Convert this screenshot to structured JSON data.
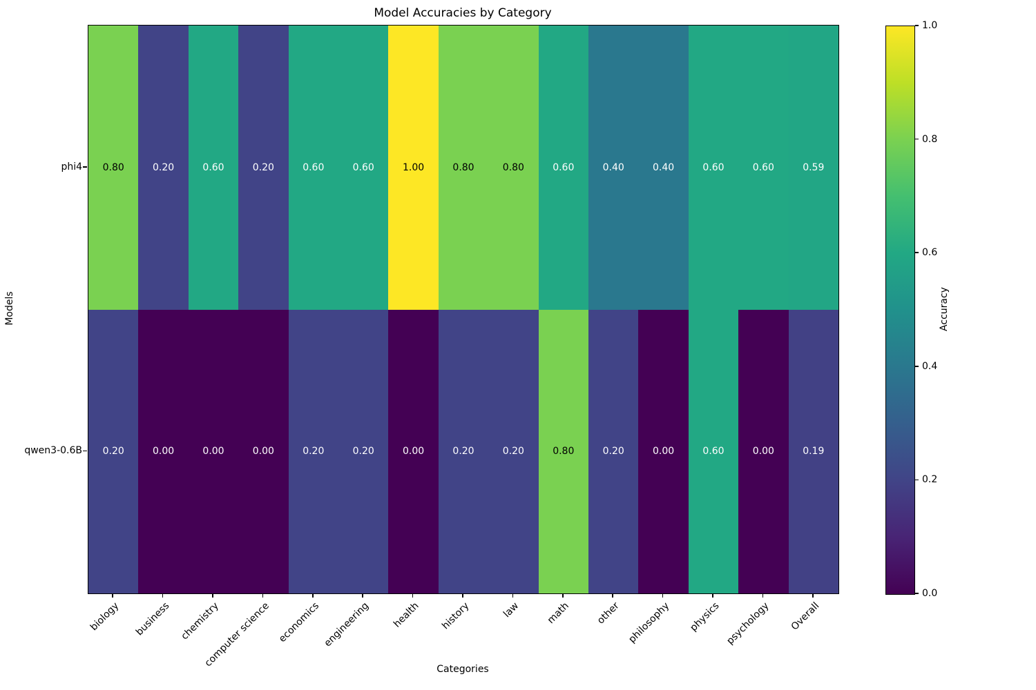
{
  "title": "Model Accuracies by Category",
  "chart_data": {
    "type": "heatmap",
    "title": "Model Accuracies by Category",
    "xlabel": "Categories",
    "ylabel": "Models",
    "categories": [
      "biology",
      "business",
      "chemistry",
      "computer science",
      "economics",
      "engineering",
      "health",
      "history",
      "law",
      "math",
      "other",
      "philosophy",
      "physics",
      "psychology",
      "Overall"
    ],
    "models": [
      "phi4",
      "qwen3-0.6B"
    ],
    "series": [
      {
        "name": "phi4",
        "values": [
          0.8,
          0.2,
          0.6,
          0.2,
          0.6,
          0.6,
          1.0,
          0.8,
          0.8,
          0.6,
          0.4,
          0.4,
          0.6,
          0.6,
          0.59
        ]
      },
      {
        "name": "qwen3-0.6B",
        "values": [
          0.2,
          0.0,
          0.0,
          0.0,
          0.2,
          0.2,
          0.0,
          0.2,
          0.2,
          0.8,
          0.2,
          0.0,
          0.6,
          0.0,
          0.19
        ]
      }
    ],
    "value_range": [
      0.0,
      1.0
    ],
    "grid": false,
    "legend_position": "right-colorbar",
    "colorbar": {
      "label": "Accuracy",
      "ticks": [
        0.0,
        0.2,
        0.4,
        0.6,
        0.8,
        1.0
      ],
      "colormap": "viridis",
      "stops": [
        "#440154",
        "#482475",
        "#414487",
        "#355f8d",
        "#2a788e",
        "#21918c",
        "#22a884",
        "#44bf70",
        "#7ad151",
        "#bddf26",
        "#fde725"
      ]
    },
    "annotation": {
      "format_decimals": 2,
      "dark_text_color": "#000000",
      "light_text_color": "#ffffff",
      "dark_text_threshold": 0.7
    }
  }
}
